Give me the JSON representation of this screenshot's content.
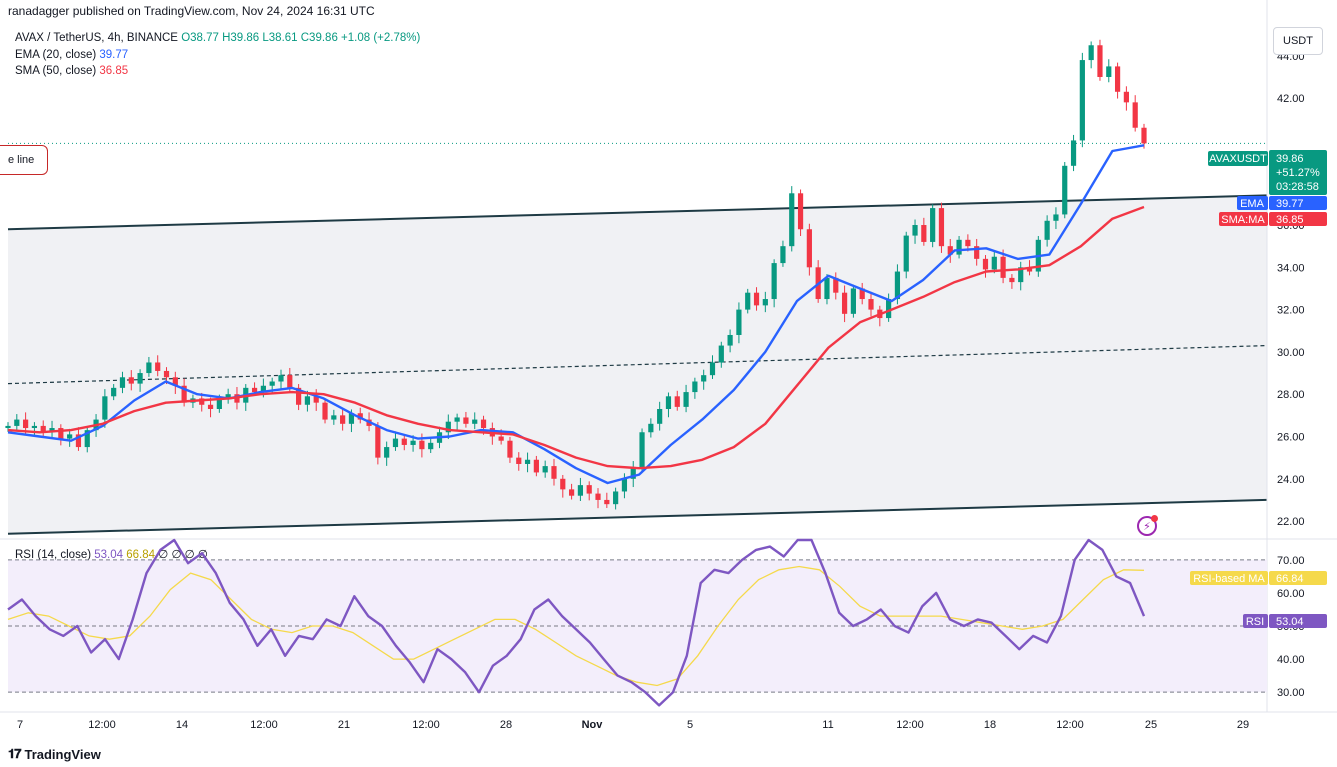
{
  "publisher": "ranadagger published on TradingView.com, Nov 24, 2024 16:31 UTC",
  "legend": {
    "symbol": "AVAX / TetherUS, 4h, BINANCE",
    "ohlc": "O38.77 H39.86 L38.61 C39.86 +1.08 (+2.78%)",
    "ema_label": "EMA (20, close)",
    "ema_value": "39.77",
    "sma_label": "SMA (50, close)",
    "sma_value": "36.85"
  },
  "rsi_legend": {
    "label": "RSI (14, close)",
    "value": "53.04",
    "ma_value": "66.84",
    "extra": "∅ ∅ ∅ ∅"
  },
  "currency": "USDT",
  "trend_label": "e line",
  "brand": "TradingView",
  "colors": {
    "up": "#089981",
    "down": "#f23645",
    "ema": "#2962ff",
    "sma": "#f23645",
    "rsi": "#7e57c2",
    "rsi_ma": "#f5d94b",
    "channel_fill": "#f0f1f4",
    "channel_line": "#1e3a44",
    "rsi_band": "#f3eefb"
  },
  "price_tags": {
    "symbol_tag": "AVAXUSDT",
    "price": "39.86",
    "change": "+51.27%",
    "countdown": "03:28:58",
    "ema_tag": "EMA",
    "ema_value": "39.77",
    "sma_tag": "SMA:MA",
    "sma_value": "36.85",
    "rsi_ma_tag": "RSI-based MA",
    "rsi_ma_value": "66.84",
    "rsi_tag": "RSI",
    "rsi_value": "53.04"
  },
  "chart_data": {
    "type": "candlestick",
    "title": "AVAX / TetherUS, 4h, BINANCE",
    "price_axis": {
      "ticks": [
        "44.00",
        "42.00",
        "36.00",
        "34.00",
        "32.00",
        "30.00",
        "28.00",
        "26.00",
        "24.00",
        "22.00"
      ],
      "ylim": [
        21.2,
        45.6
      ]
    },
    "rsi_axis": {
      "ticks": [
        "70.00",
        "60.00",
        "50.00",
        "40.00",
        "30.00"
      ],
      "ylim": [
        24,
        76
      ]
    },
    "x_ticks": [
      "7",
      "12:00",
      "14",
      "12:00",
      "21",
      "12:00",
      "28",
      "Nov",
      "5",
      "11",
      "12:00",
      "18",
      "12:00",
      "25",
      "29"
    ],
    "candles_close_path": [
      26.5,
      26.8,
      26.4,
      26.5,
      26.2,
      26.4,
      25.9,
      26.1,
      25.5,
      26.3,
      26.8,
      27.9,
      28.3,
      28.8,
      28.5,
      29.0,
      29.5,
      29.1,
      28.8,
      28.4,
      27.6,
      27.8,
      27.5,
      27.3,
      27.8,
      28.0,
      27.6,
      28.3,
      28.1,
      28.4,
      28.6,
      28.9,
      28.3,
      27.5,
      27.9,
      27.6,
      26.8,
      27.0,
      26.6,
      27.1,
      26.8,
      26.5,
      25.0,
      25.5,
      25.9,
      25.6,
      25.8,
      25.4,
      25.7,
      26.2,
      26.7,
      26.9,
      26.6,
      26.8,
      26.4,
      26.0,
      25.8,
      25.0,
      24.7,
      24.9,
      24.3,
      24.6,
      24.0,
      23.5,
      23.2,
      23.7,
      23.3,
      23.0,
      22.8,
      23.4,
      24.0,
      24.5,
      26.2,
      26.6,
      27.3,
      27.9,
      27.4,
      28.1,
      28.6,
      28.9,
      29.5,
      30.3,
      30.8,
      32.0,
      32.8,
      32.2,
      32.5,
      34.2,
      35.0,
      37.5,
      35.8,
      34.0,
      32.5,
      33.5,
      32.8,
      31.8,
      33.0,
      32.5,
      32.0,
      31.6,
      32.5,
      33.8,
      35.5,
      36.0,
      35.2,
      36.8,
      35.0,
      34.6,
      35.3,
      35.0,
      34.4,
      33.9,
      34.5,
      33.5,
      33.3,
      34.0,
      33.8,
      35.3,
      36.2,
      36.5,
      38.8,
      40.0,
      43.8,
      44.5,
      43.0,
      43.5,
      42.3,
      41.8,
      40.6,
      39.86
    ],
    "series": [
      {
        "name": "EMA (20, close)",
        "last": 39.77,
        "values": [
          26.2,
          26.0,
          25.8,
          26.5,
          27.7,
          28.6,
          28.0,
          27.8,
          28.1,
          28.3,
          27.8,
          27.0,
          26.3,
          25.9,
          26.0,
          26.3,
          26.2,
          25.4,
          24.5,
          23.8,
          24.2,
          25.6,
          26.8,
          28.2,
          30.0,
          32.4,
          33.6,
          33.0,
          32.4,
          33.4,
          34.8,
          34.9,
          34.4,
          34.6,
          37.0,
          39.5,
          39.77
        ]
      },
      {
        "name": "SMA (50, close)",
        "last": 36.85,
        "values": [
          26.3,
          26.2,
          26.3,
          26.6,
          27.2,
          27.6,
          27.7,
          27.8,
          28.0,
          28.1,
          28.0,
          27.6,
          27.0,
          26.6,
          26.3,
          26.2,
          26.1,
          25.6,
          25.0,
          24.6,
          24.5,
          24.6,
          24.9,
          25.5,
          26.6,
          28.4,
          30.2,
          31.4,
          32.0,
          32.6,
          33.3,
          33.8,
          33.9,
          34.1,
          35.0,
          36.3,
          36.85
        ]
      }
    ],
    "channel": {
      "upper_start": 35.8,
      "upper_end": 37.4,
      "lower_start": 21.4,
      "lower_end": 23.0,
      "mid_start": 28.5,
      "mid_end": 30.3
    },
    "rsi": {
      "name": "RSI (14, close)",
      "last": 53.04,
      "values": [
        55,
        58,
        53,
        49,
        47,
        50,
        42,
        46,
        40,
        52,
        66,
        73,
        76,
        69,
        72,
        66,
        57,
        52,
        44,
        49,
        41,
        47,
        46,
        52,
        50,
        59,
        53,
        50,
        44,
        39,
        33,
        43,
        40,
        36,
        30,
        38,
        41,
        46,
        55,
        58,
        53,
        49,
        45,
        40,
        35,
        33,
        30,
        26,
        30,
        41,
        63,
        67,
        66,
        70,
        73,
        74,
        71,
        77,
        80,
        66,
        54,
        50,
        52,
        55,
        50,
        48,
        56,
        60,
        52,
        50,
        52,
        51,
        47,
        43,
        47,
        45,
        53,
        70,
        76,
        73,
        65,
        63,
        53
      ],
      "ma_values": [
        52,
        54,
        53,
        50,
        47,
        46,
        47,
        53,
        61,
        66,
        64,
        58,
        52,
        49,
        48,
        50,
        50,
        48,
        44,
        40,
        40,
        43,
        46,
        49,
        52,
        52,
        49,
        45,
        41,
        38,
        35,
        33,
        32,
        34,
        41,
        50,
        58,
        64,
        67,
        68,
        67,
        62,
        56,
        53,
        53,
        53,
        53,
        52,
        51,
        50,
        49,
        50,
        52,
        58,
        64,
        67,
        66.84
      ],
      "upper": 70,
      "middle": 50,
      "lower": 30
    }
  }
}
